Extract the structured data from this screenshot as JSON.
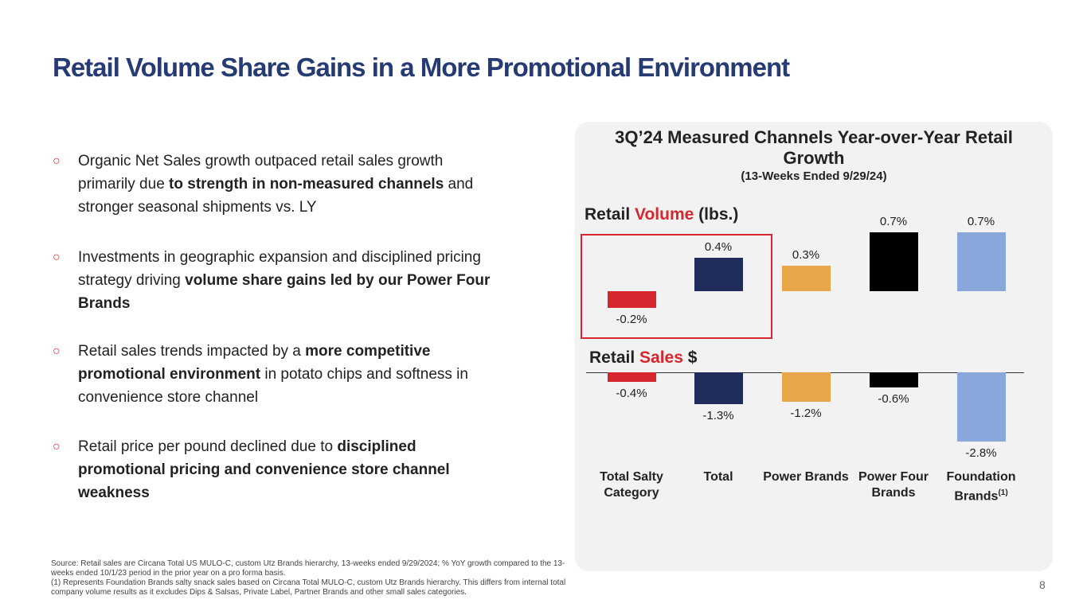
{
  "title": "Retail Volume Share Gains in a More Promotional Environment",
  "bullets": [
    [
      {
        "text": "Organic Net Sales growth outpaced retail sales growth primarily due ",
        "bold": false
      },
      {
        "text": "to strength in non-measured channels",
        "bold": true
      },
      {
        "text": " and stronger seasonal shipments vs. LY",
        "bold": false
      }
    ],
    [
      {
        "text": "Investments in geographic expansion and disciplined pricing strategy driving ",
        "bold": false
      },
      {
        "text": "volume share gains led by our Power Four Brands",
        "bold": true
      }
    ],
    [
      {
        "text": "Retail sales trends impacted by a ",
        "bold": false
      },
      {
        "text": "more competitive promotional environment",
        "bold": true
      },
      {
        "text": " in potato chips and softness in convenience store channel",
        "bold": false
      }
    ],
    [
      {
        "text": "Retail price per pound declined due to ",
        "bold": false
      },
      {
        "text": "disciplined promotional pricing and convenience store channel weakness",
        "bold": true
      }
    ]
  ],
  "footnotes": [
    "Source: Retail sales are Circana Total US MULO-C, custom Utz Brands hierarchy, 13-weeks ended 9/29/2024; % YoY growth compared to the 13-weeks ended 10/1/23 period in the prior year on a pro forma basis.",
    "(1) Represents Foundation Brands salty snack sales based on Circana Total MULO-C, custom Utz Brands hierarchy. This differs from internal total company volume results as it excludes Dips & Salsas, Private Label, Partner Brands and other small sales categories."
  ],
  "page_number": "8",
  "chart_data": {
    "type": "bar",
    "title": "3Q’24 Measured Channels Year-over-Year Retail Growth",
    "subtitle": "(13-Weeks Ended 9/29/24)",
    "categories": [
      "Total Salty Category",
      "Total",
      "Power Brands",
      "Power Four Brands",
      "Foundation Brands"
    ],
    "category_footnote": "(1)",
    "colors": [
      "#d7262e",
      "#1f2c5c",
      "#e8a54a",
      "#000000",
      "#8aa7dc"
    ],
    "series": [
      {
        "name_parts": [
          "Retail",
          "Volume",
          "(lbs.)"
        ],
        "values": [
          -0.2,
          0.4,
          0.3,
          0.7,
          0.7
        ],
        "value_labels": [
          "-0.2%",
          "0.4%",
          "0.3%",
          "0.7%",
          "0.7%"
        ]
      },
      {
        "name_parts": [
          "Retail",
          "Sales",
          "$"
        ],
        "values": [
          -0.4,
          -1.3,
          -1.2,
          -0.6,
          -2.8
        ],
        "value_labels": [
          "-0.4%",
          "-1.3%",
          "-1.2%",
          "-0.6%",
          "-2.8%"
        ]
      }
    ]
  }
}
